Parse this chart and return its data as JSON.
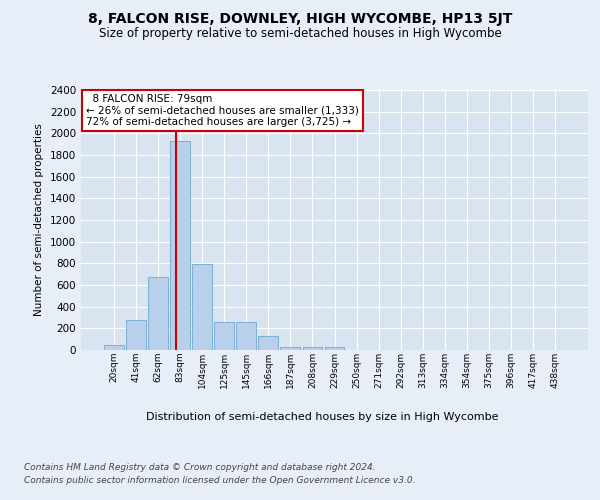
{
  "title": "8, FALCON RISE, DOWNLEY, HIGH WYCOMBE, HP13 5JT",
  "subtitle": "Size of property relative to semi-detached houses in High Wycombe",
  "xlabel": "Distribution of semi-detached houses by size in High Wycombe",
  "ylabel": "Number of semi-detached properties",
  "bar_color": "#b8d0ea",
  "bar_edge_color": "#6fa8d0",
  "background_color": "#e8eef8",
  "plot_bg_color": "#d8e4f0",
  "grid_color": "#ffffff",
  "annotation_border_color": "#cc0000",
  "vline_color": "#cc0000",
  "annotation_text_line1": "8 FALCON RISE: 79sqm",
  "annotation_text_line2": "← 26% of semi-detached houses are smaller (1,333)",
  "annotation_text_line3": "72% of semi-detached houses are larger (3,725) →",
  "bin_labels": [
    "20sqm",
    "41sqm",
    "62sqm",
    "83sqm",
    "104sqm",
    "125sqm",
    "145sqm",
    "166sqm",
    "187sqm",
    "208sqm",
    "229sqm",
    "250sqm",
    "271sqm",
    "292sqm",
    "313sqm",
    "334sqm",
    "354sqm",
    "375sqm",
    "396sqm",
    "417sqm",
    "438sqm"
  ],
  "bar_heights": [
    50,
    280,
    670,
    1930,
    790,
    260,
    260,
    130,
    30,
    25,
    25,
    0,
    0,
    0,
    0,
    0,
    0,
    0,
    0,
    0,
    0
  ],
  "ylim": [
    0,
    2400
  ],
  "yticks": [
    0,
    200,
    400,
    600,
    800,
    1000,
    1200,
    1400,
    1600,
    1800,
    2000,
    2200,
    2400
  ],
  "footnote1": "Contains HM Land Registry data © Crown copyright and database right 2024.",
  "footnote2": "Contains public sector information licensed under the Open Government Licence v3.0.",
  "vline_x": 2.81
}
